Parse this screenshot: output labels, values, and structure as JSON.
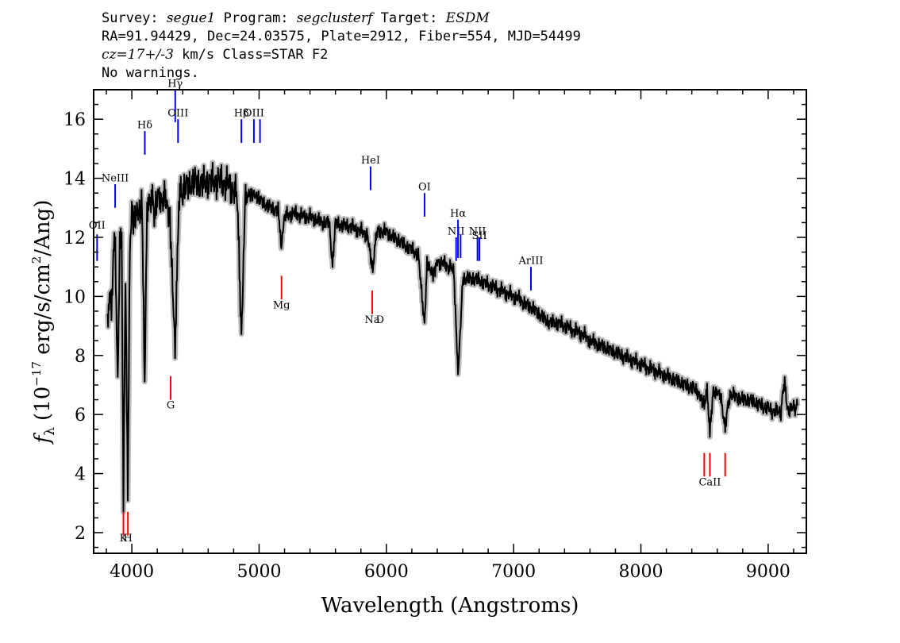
{
  "header": {
    "survey_label": "Survey:",
    "survey": "segue1",
    "program_label": "Program:",
    "program": "segclusterf",
    "target_label": "Target:",
    "target": "ESDM",
    "coords": "RA=91.94429, Dec=24.03575, Plate=2912, Fiber=554, MJD=54499",
    "cz": "cz=17+/-3",
    "cz_units": "km/s Class=STAR F2",
    "warnings": "No warnings."
  },
  "chart_data": {
    "type": "line",
    "xlabel": "Wavelength (Angstroms)",
    "ylabel_prefix": "f",
    "ylabel_sub": "λ",
    "ylabel_units_a": "(10",
    "ylabel_exp": "−17",
    "ylabel_units_b": " erg/s/cm",
    "ylabel_exp2": "2",
    "ylabel_units_c": "/Ang)",
    "xlim": [
      3700,
      9300
    ],
    "ylim": [
      1.3,
      17.0
    ],
    "xticks": [
      4000,
      5000,
      6000,
      7000,
      8000,
      9000
    ],
    "yticks": [
      2,
      4,
      6,
      8,
      10,
      12,
      14,
      16
    ],
    "grid": false,
    "colors": {
      "spectrum": "#000000",
      "error": "#b4b4b4",
      "emission": "#0000ff",
      "absorption": "#ff0000"
    },
    "series": [
      {
        "points": [
          [
            3810,
            8.9
          ],
          [
            3825,
            10.3
          ],
          [
            3840,
            9.3
          ],
          [
            3855,
            11.8
          ],
          [
            3870,
            11.5
          ],
          [
            3889,
            7.1
          ],
          [
            3905,
            11.8
          ],
          [
            3920,
            12.2
          ],
          [
            3934,
            3.1
          ],
          [
            3950,
            10.8
          ],
          [
            3968,
            3.3
          ],
          [
            3985,
            11.6
          ],
          [
            4000,
            13.0
          ],
          [
            4020,
            12.6
          ],
          [
            4040,
            12.9
          ],
          [
            4060,
            12.7
          ],
          [
            4080,
            13.0
          ],
          [
            4101,
            7.2
          ],
          [
            4120,
            12.9
          ],
          [
            4150,
            13.4
          ],
          [
            4180,
            12.9
          ],
          [
            4200,
            13.5
          ],
          [
            4230,
            13.2
          ],
          [
            4260,
            13.4
          ],
          [
            4300,
            12.4
          ],
          [
            4340,
            8.1
          ],
          [
            4370,
            13.3
          ],
          [
            4400,
            13.6
          ],
          [
            4450,
            13.8
          ],
          [
            4500,
            13.9
          ],
          [
            4550,
            13.8
          ],
          [
            4600,
            13.9
          ],
          [
            4650,
            13.9
          ],
          [
            4700,
            13.9
          ],
          [
            4750,
            13.8
          ],
          [
            4800,
            13.6
          ],
          [
            4830,
            13.4
          ],
          [
            4861,
            8.5
          ],
          [
            4890,
            13.4
          ],
          [
            4920,
            13.4
          ],
          [
            4960,
            13.4
          ],
          [
            5000,
            13.3
          ],
          [
            5050,
            13.1
          ],
          [
            5100,
            13.0
          ],
          [
            5150,
            12.9
          ],
          [
            5175,
            11.7
          ],
          [
            5200,
            12.7
          ],
          [
            5250,
            12.8
          ],
          [
            5300,
            12.8
          ],
          [
            5350,
            12.7
          ],
          [
            5400,
            12.7
          ],
          [
            5450,
            12.6
          ],
          [
            5500,
            12.5
          ],
          [
            5550,
            12.5
          ],
          [
            5577,
            11.1
          ],
          [
            5600,
            12.5
          ],
          [
            5650,
            12.4
          ],
          [
            5700,
            12.4
          ],
          [
            5750,
            12.3
          ],
          [
            5800,
            12.2
          ],
          [
            5850,
            12.1
          ],
          [
            5893,
            10.8
          ],
          [
            5920,
            12.2
          ],
          [
            5950,
            12.2
          ],
          [
            6000,
            12.2
          ],
          [
            6050,
            12.0
          ],
          [
            6100,
            11.9
          ],
          [
            6150,
            11.7
          ],
          [
            6200,
            11.6
          ],
          [
            6250,
            11.4
          ],
          [
            6300,
            9.1
          ],
          [
            6320,
            11.2
          ],
          [
            6363,
            10.7
          ],
          [
            6400,
            11.2
          ],
          [
            6450,
            11.1
          ],
          [
            6500,
            11.0
          ],
          [
            6530,
            10.9
          ],
          [
            6563,
            7.3
          ],
          [
            6600,
            10.6
          ],
          [
            6650,
            10.6
          ],
          [
            6700,
            10.6
          ],
          [
            6750,
            10.5
          ],
          [
            6800,
            10.4
          ],
          [
            6850,
            10.3
          ],
          [
            6900,
            10.2
          ],
          [
            6950,
            10.1
          ],
          [
            7000,
            10.0
          ],
          [
            7050,
            9.9
          ],
          [
            7100,
            9.7
          ],
          [
            7150,
            9.6
          ],
          [
            7200,
            9.4
          ],
          [
            7250,
            9.2
          ],
          [
            7300,
            9.1
          ],
          [
            7350,
            9.1
          ],
          [
            7400,
            9.0
          ],
          [
            7450,
            8.9
          ],
          [
            7500,
            8.8
          ],
          [
            7550,
            8.7
          ],
          [
            7600,
            8.5
          ],
          [
            7650,
            8.4
          ],
          [
            7700,
            8.3
          ],
          [
            7750,
            8.2
          ],
          [
            7800,
            8.1
          ],
          [
            7850,
            8.0
          ],
          [
            7900,
            7.9
          ],
          [
            7950,
            7.8
          ],
          [
            8000,
            7.7
          ],
          [
            8050,
            7.6
          ],
          [
            8100,
            7.5
          ],
          [
            8150,
            7.4
          ],
          [
            8200,
            7.3
          ],
          [
            8250,
            7.2
          ],
          [
            8300,
            7.1
          ],
          [
            8350,
            7.0
          ],
          [
            8400,
            6.9
          ],
          [
            8450,
            6.8
          ],
          [
            8498,
            6.4
          ],
          [
            8520,
            6.8
          ],
          [
            8542,
            5.4
          ],
          [
            8570,
            6.8
          ],
          [
            8600,
            6.7
          ],
          [
            8620,
            6.7
          ],
          [
            8662,
            5.6
          ],
          [
            8700,
            6.7
          ],
          [
            8750,
            6.6
          ],
          [
            8800,
            6.5
          ],
          [
            8850,
            6.5
          ],
          [
            8900,
            6.4
          ],
          [
            8950,
            6.3
          ],
          [
            9000,
            6.2
          ],
          [
            9050,
            6.1
          ],
          [
            9100,
            6.1
          ],
          [
            9130,
            7.2
          ],
          [
            9150,
            6.2
          ],
          [
            9200,
            6.2
          ],
          [
            9230,
            6.3
          ]
        ]
      }
    ],
    "emission_lines": [
      {
        "label": "OII",
        "x": 3727,
        "y0": 11.2,
        "y1": 12.1,
        "label_y": 12.3
      },
      {
        "label": "NeIII",
        "x": 3869,
        "y0": 13.0,
        "y1": 13.8,
        "label_y": 13.9
      },
      {
        "label": "Hδ",
        "x": 4102,
        "y0": 14.8,
        "y1": 15.6,
        "label_y": 15.7
      },
      {
        "label": "Hγ",
        "x": 4341,
        "y0": 15.9,
        "y1": 17.0,
        "label_y": 17.1
      },
      {
        "label": "OIII",
        "x": 4363,
        "y0": 15.2,
        "y1": 16.0,
        "label_y": 16.1
      },
      {
        "label": "Hβ",
        "x": 4861,
        "y0": 15.2,
        "y1": 16.0,
        "label_y": 16.1
      },
      {
        "label": "OIII",
        "x": 4959,
        "y0": 15.2,
        "y1": 16.0,
        "label_y": 16.1
      },
      {
        "label": "",
        "x": 5007,
        "y0": 15.2,
        "y1": 16.0,
        "label_y": 16.1
      },
      {
        "label": "HeI",
        "x": 5876,
        "y0": 13.6,
        "y1": 14.4,
        "label_y": 14.5
      },
      {
        "label": "OI",
        "x": 6300,
        "y0": 12.7,
        "y1": 13.5,
        "label_y": 13.6
      },
      {
        "label": "NII",
        "x": 6548,
        "y0": 11.2,
        "y1": 12.0,
        "label_y": 12.1
      },
      {
        "label": "Hα",
        "x": 6563,
        "y0": 11.3,
        "y1": 12.6,
        "label_y": 12.7
      },
      {
        "label": "",
        "x": 6583,
        "y0": 11.3,
        "y1": 12.1,
        "label_y": 12.2
      },
      {
        "label": "NII",
        "x": 6716,
        "y0": 11.2,
        "y1": 12.0,
        "label_y": 12.1
      },
      {
        "label": "SII",
        "x": 6731,
        "y0": 11.2,
        "y1": 12.0,
        "label_y": 11.95
      },
      {
        "label": "ArIII",
        "x": 7136,
        "y0": 10.2,
        "y1": 11.0,
        "label_y": 11.1
      }
    ],
    "absorption_lines": [
      {
        "label": "K",
        "x": 3934,
        "y0": 1.9,
        "y1": 2.7,
        "label_y": 1.7
      },
      {
        "label": "H",
        "x": 3969,
        "y0": 1.9,
        "y1": 2.7,
        "label_y": 1.7
      },
      {
        "label": "G",
        "x": 4305,
        "y0": 6.5,
        "y1": 7.3,
        "label_y": 6.2
      },
      {
        "label": "Mg",
        "x": 5176,
        "y0": 9.9,
        "y1": 10.7,
        "label_y": 9.6
      },
      {
        "label": "Na",
        "x": 5889,
        "y0": 9.4,
        "y1": 10.2,
        "label_y": 9.1
      },
      {
        "label": "D",
        "x": 5950,
        "y0": 0,
        "y1": 0,
        "label_y": 9.1
      },
      {
        "label": "",
        "x": 8498,
        "y0": 3.9,
        "y1": 4.7,
        "label_y": 3.6
      },
      {
        "label": "CaII",
        "x": 8542,
        "y0": 3.9,
        "y1": 4.7,
        "label_y": 3.6
      },
      {
        "label": "",
        "x": 8662,
        "y0": 3.9,
        "y1": 4.7,
        "label_y": 3.6
      }
    ]
  }
}
